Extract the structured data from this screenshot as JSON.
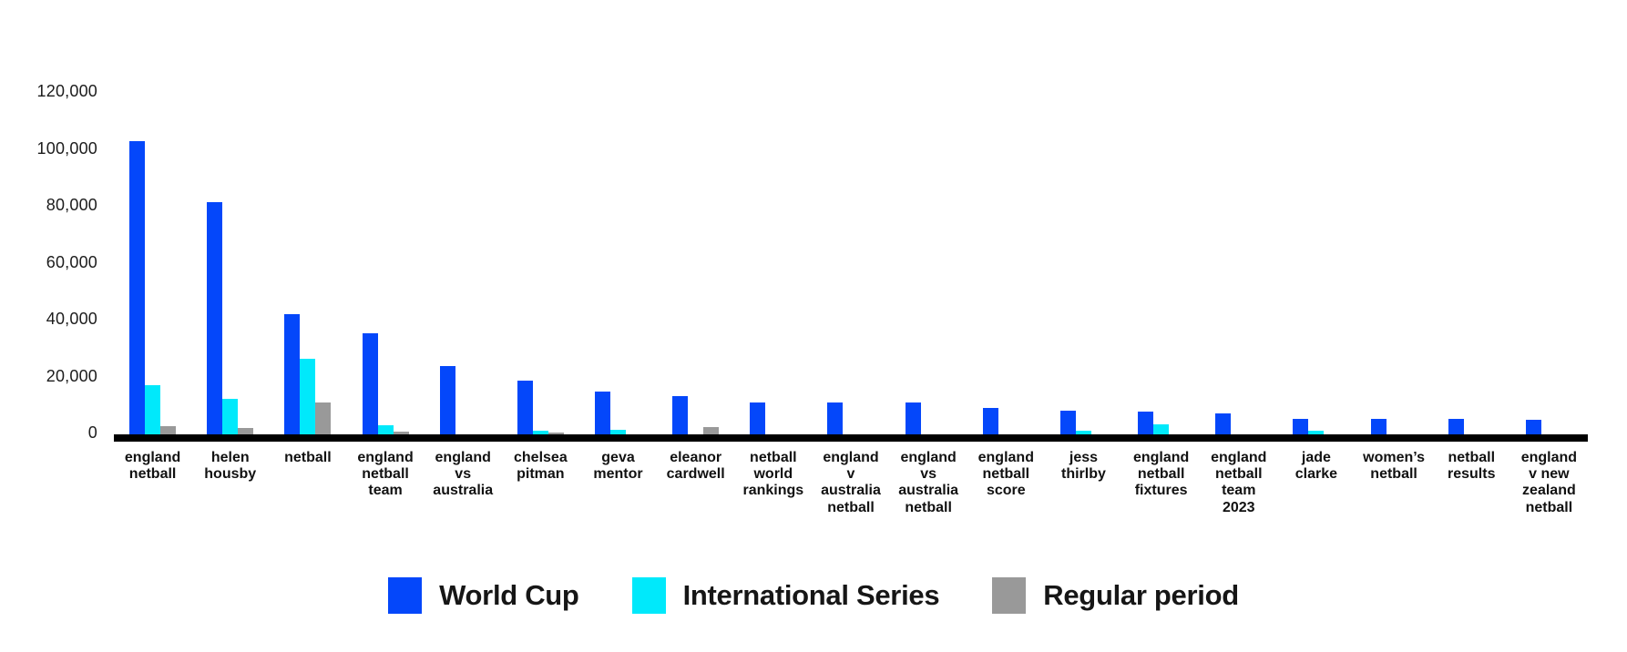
{
  "colors": {
    "world_cup": "#0447FA",
    "international_series": "#00E9FB",
    "regular_period": "#999999",
    "axis_line": "#000000",
    "tick_text": "#1c1c1c",
    "category_text": "#111111"
  },
  "chart_data": {
    "type": "bar",
    "title": "",
    "xlabel": "",
    "ylabel": "",
    "grid": false,
    "legend_position": "bottom",
    "ylim": [
      0,
      120000
    ],
    "yticks": [
      "120,000",
      "100,000",
      "80,000",
      "60,000",
      "40,000",
      "20,000",
      "0"
    ],
    "ytick_values": [
      120000,
      100000,
      80000,
      60000,
      40000,
      20000,
      0
    ],
    "categories": [
      "england netball",
      "helen housby",
      "netball",
      "england netball team",
      "england vs australia",
      "chelsea pitman",
      "geva mentor",
      "eleanor cardwell",
      "netball world rankings",
      "england v australia netball",
      "england vs australia netball",
      "england netball score",
      "jess thirlby",
      "england netball fixtures",
      "england netball team 2023",
      "jade clarke",
      "women’s netball",
      "netball results",
      "england v new zealand netball"
    ],
    "label_lines": [
      [
        "england",
        "netball"
      ],
      [
        "helen",
        "housby"
      ],
      [
        "netball"
      ],
      [
        "england",
        "netball",
        "team"
      ],
      [
        "england",
        "vs",
        "australia"
      ],
      [
        "chelsea",
        "pitman"
      ],
      [
        "geva",
        "mentor"
      ],
      [
        "eleanor",
        "cardwell"
      ],
      [
        "netball",
        "world",
        "rankings"
      ],
      [
        "england",
        "v",
        "australia",
        "netball"
      ],
      [
        "england",
        "vs",
        "australia",
        "netball"
      ],
      [
        "england",
        "netball",
        "score"
      ],
      [
        "jess",
        "thirlby"
      ],
      [
        "england",
        "netball",
        "fixtures"
      ],
      [
        "england",
        "netball",
        "team",
        "2023"
      ],
      [
        "jade",
        "clarke"
      ],
      [
        "women’s",
        "netball"
      ],
      [
        "netball",
        "results"
      ],
      [
        "england",
        "v new",
        "zealand",
        "netball"
      ]
    ],
    "series": [
      {
        "name": "World Cup",
        "color_key": "world_cup",
        "values": [
          103000,
          81600,
          42200,
          35500,
          24000,
          18900,
          15000,
          13400,
          11200,
          11200,
          11200,
          9300,
          8400,
          8100,
          7400,
          5500,
          5500,
          5500,
          5100
        ]
      },
      {
        "name": "International Series",
        "color_key": "international_series",
        "values": [
          17300,
          12500,
          26500,
          3200,
          0,
          1200,
          1500,
          0,
          0,
          0,
          0,
          0,
          1300,
          3600,
          0,
          1300,
          0,
          0,
          0
        ]
      },
      {
        "name": "Regular period",
        "color_key": "regular_period",
        "values": [
          2900,
          2400,
          11200,
          900,
          0,
          700,
          0,
          2600,
          0,
          0,
          0,
          0,
          0,
          0,
          0,
          0,
          0,
          0,
          0
        ]
      }
    ]
  }
}
